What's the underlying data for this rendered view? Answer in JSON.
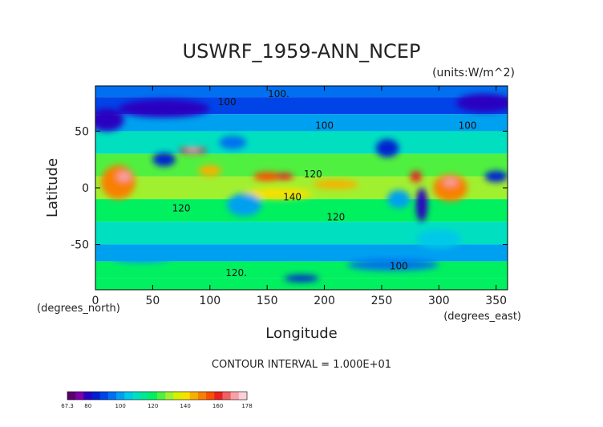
{
  "chart_data": {
    "type": "heatmap",
    "title": "USWRF_1959-ANN_NCEP",
    "units": "(units:W/m^2)",
    "xlabel": "Longitude",
    "ylabel": "Latitude",
    "x_units": "(degrees_east)",
    "y_units": "(degrees_north)",
    "xlim": [
      0,
      360
    ],
    "ylim": [
      -90,
      90
    ],
    "xticks": [
      0,
      50,
      100,
      150,
      200,
      250,
      300,
      350
    ],
    "yticks": [
      -50,
      0,
      50
    ],
    "contour_interval": "CONTOUR INTERVAL = 1.000E+01",
    "contour_labels": [
      {
        "text": "100.",
        "lon": 160,
        "lat": 83
      },
      {
        "text": "100",
        "lon": 115,
        "lat": 76
      },
      {
        "text": "100",
        "lon": 200,
        "lat": 55
      },
      {
        "text": "100",
        "lon": 325,
        "lat": 55
      },
      {
        "text": "120",
        "lon": 190,
        "lat": 12
      },
      {
        "text": "140",
        "lon": 172,
        "lat": -8
      },
      {
        "text": "120",
        "lon": 75,
        "lat": -18
      },
      {
        "text": "120",
        "lon": 210,
        "lat": -26
      },
      {
        "text": "100",
        "lon": 265,
        "lat": -69
      },
      {
        "text": "120.",
        "lon": 123,
        "lat": -75
      }
    ],
    "colorbar": {
      "min_label": "67.3",
      "max_label": "178",
      "ticks": [
        "80",
        "100",
        "120",
        "140",
        "160"
      ],
      "min": 67.3,
      "max": 178,
      "colors": [
        "#5a006e",
        "#7a00a8",
        "#2a00c0",
        "#0020d0",
        "#0044e8",
        "#0070f0",
        "#00a0f0",
        "#00c8e8",
        "#00e0c0",
        "#00e890",
        "#00f060",
        "#50f040",
        "#a0f030",
        "#d8f000",
        "#f8e000",
        "#f8b000",
        "#f88000",
        "#f85000",
        "#e82020",
        "#f06060",
        "#f8a0a8",
        "#ffd0d8"
      ]
    },
    "regions": [
      {
        "lon": 0,
        "lat": 80,
        "w": 360,
        "h": 15,
        "v": 95
      },
      {
        "lon": 0,
        "lat": 65,
        "w": 360,
        "h": 15,
        "v": 90
      },
      {
        "lon": 0,
        "lat": 50,
        "w": 360,
        "h": 15,
        "v": 100
      },
      {
        "lon": 0,
        "lat": 30,
        "w": 360,
        "h": 20,
        "v": 112
      },
      {
        "lon": 0,
        "lat": 10,
        "w": 360,
        "h": 20,
        "v": 125
      },
      {
        "lon": 0,
        "lat": -10,
        "w": 360,
        "h": 20,
        "v": 128
      },
      {
        "lon": 0,
        "lat": -30,
        "w": 360,
        "h": 20,
        "v": 118
      },
      {
        "lon": 0,
        "lat": -50,
        "w": 360,
        "h": 20,
        "v": 112
      },
      {
        "lon": 0,
        "lat": -65,
        "w": 360,
        "h": 15,
        "v": 100
      },
      {
        "lon": 0,
        "lat": -80,
        "w": 360,
        "h": 15,
        "v": 118
      },
      {
        "lon": 0,
        "lat": -90,
        "w": 360,
        "h": 10,
        "v": 120
      }
    ],
    "blobs": [
      {
        "lon": 60,
        "lat": 70,
        "rx": 40,
        "ry": 8,
        "v": 80
      },
      {
        "lon": 10,
        "lat": 60,
        "rx": 15,
        "ry": 10,
        "v": 82
      },
      {
        "lon": 340,
        "lat": 75,
        "rx": 25,
        "ry": 8,
        "v": 80
      },
      {
        "lon": 60,
        "lat": 25,
        "rx": 10,
        "ry": 6,
        "v": 85
      },
      {
        "lon": 85,
        "lat": 33,
        "rx": 12,
        "ry": 3,
        "v": 162
      },
      {
        "lon": 85,
        "lat": 34,
        "rx": 6,
        "ry": 2,
        "v": 172
      },
      {
        "lon": 120,
        "lat": 40,
        "rx": 12,
        "ry": 6,
        "v": 95
      },
      {
        "lon": 20,
        "lat": 5,
        "rx": 15,
        "ry": 15,
        "v": 150
      },
      {
        "lon": 25,
        "lat": 10,
        "rx": 6,
        "ry": 4,
        "v": 172
      },
      {
        "lon": 100,
        "lat": 15,
        "rx": 10,
        "ry": 5,
        "v": 145
      },
      {
        "lon": 150,
        "lat": 10,
        "rx": 12,
        "ry": 4,
        "v": 155
      },
      {
        "lon": 165,
        "lat": 10,
        "rx": 8,
        "ry": 3,
        "v": 160
      },
      {
        "lon": 160,
        "lat": -5,
        "rx": 30,
        "ry": 5,
        "v": 140
      },
      {
        "lon": 210,
        "lat": 3,
        "rx": 20,
        "ry": 4,
        "v": 145
      },
      {
        "lon": 265,
        "lat": -10,
        "rx": 10,
        "ry": 8,
        "v": 100
      },
      {
        "lon": 310,
        "lat": 0,
        "rx": 15,
        "ry": 12,
        "v": 152
      },
      {
        "lon": 310,
        "lat": 5,
        "rx": 6,
        "ry": 3,
        "v": 168
      },
      {
        "lon": 280,
        "lat": 10,
        "rx": 5,
        "ry": 5,
        "v": 160
      },
      {
        "lon": 285,
        "lat": -15,
        "rx": 5,
        "ry": 15,
        "v": 80
      },
      {
        "lon": 350,
        "lat": 10,
        "rx": 10,
        "ry": 5,
        "v": 85
      },
      {
        "lon": 130,
        "lat": -15,
        "rx": 15,
        "ry": 10,
        "v": 100
      },
      {
        "lon": 255,
        "lat": 35,
        "rx": 10,
        "ry": 8,
        "v": 85
      },
      {
        "lon": 260,
        "lat": -68,
        "rx": 40,
        "ry": 5,
        "v": 95
      },
      {
        "lon": 40,
        "lat": -62,
        "rx": 25,
        "ry": 4,
        "v": 100
      },
      {
        "lon": 180,
        "lat": -80,
        "rx": 15,
        "ry": 3,
        "v": 85
      },
      {
        "lon": 300,
        "lat": -45,
        "rx": 20,
        "ry": 8,
        "v": 105
      }
    ]
  }
}
